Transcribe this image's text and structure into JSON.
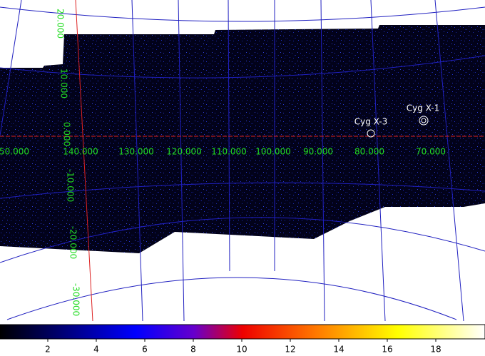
{
  "image": {
    "longitude_labels": [
      "50.000",
      "140.000",
      "130.000",
      "120.000",
      "110.000",
      "100.000",
      "90.000",
      "80.000",
      "70.000"
    ],
    "latitude_labels": [
      "20.000",
      "10.000",
      "0.000",
      "-10.000",
      "-20.000",
      "-30.000"
    ],
    "sources": [
      "Cyg X-3",
      "Cyg X-1"
    ]
  },
  "colorbar": {
    "ticks": [
      2,
      4,
      6,
      8,
      10,
      12,
      14,
      16,
      18
    ]
  }
}
